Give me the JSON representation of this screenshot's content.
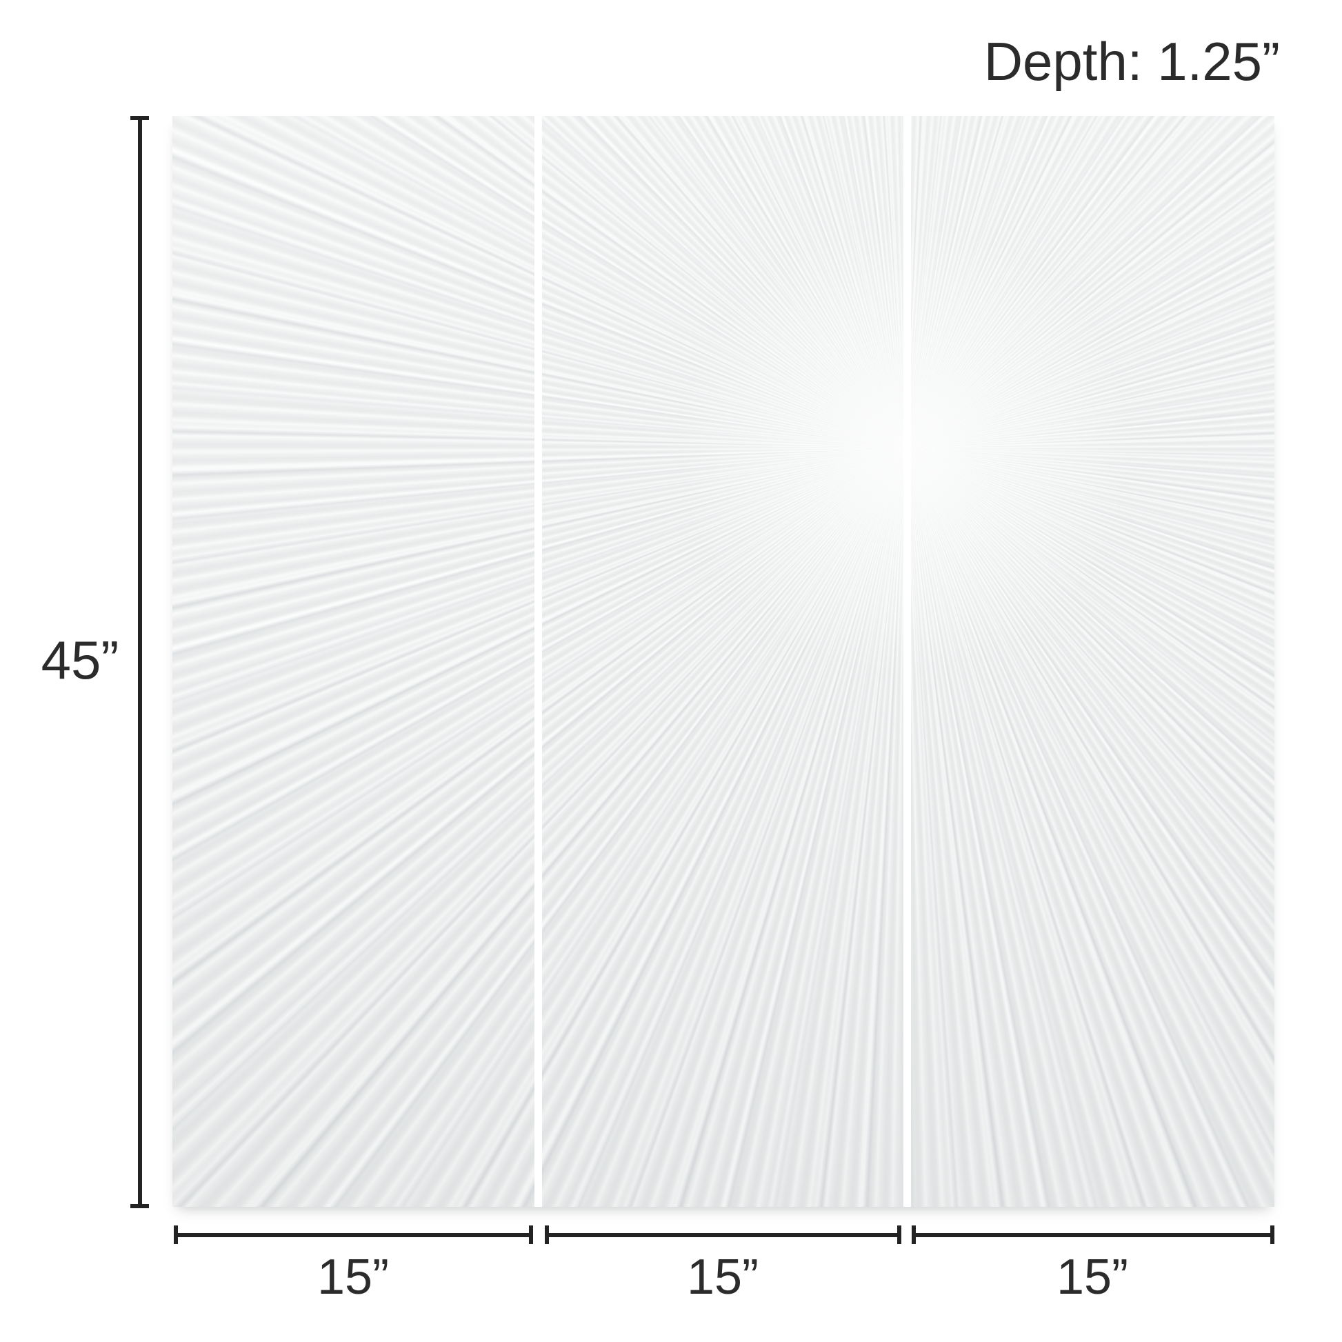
{
  "labels": {
    "depth": "Depth: 1.25”",
    "height": "45”",
    "widths": [
      "15”",
      "15”",
      "15”"
    ]
  },
  "artwork": {
    "panel_count": 3,
    "texture": "sunburst-plaster-rays"
  },
  "style": {
    "background_color": "#ffffff",
    "dimension_line_color": "#232323",
    "text_color": "#2b2b2b",
    "panel_base_color": "#e9ebec",
    "panel_ridge_highlight_color": "#f8f9f9",
    "panel_gap_color": "#ffffff"
  }
}
